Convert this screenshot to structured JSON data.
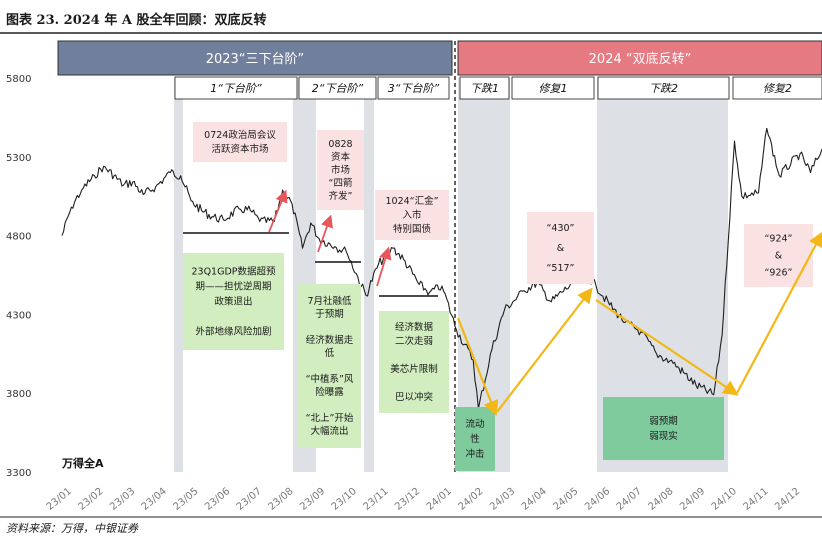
{
  "title": "图表 23. 2024 年 A 股全年回顾：双底反转",
  "source": "资料来源：万得，中银证券",
  "chart_data": {
    "type": "line",
    "series_label": "万得全A",
    "ylim": [
      3300,
      5800
    ],
    "yticks": [
      "3300",
      "3800",
      "4300",
      "4800",
      "5300",
      "5800"
    ],
    "xticks": [
      "23/01",
      "23/02",
      "23/03",
      "23/04",
      "23/05",
      "23/06",
      "23/07",
      "23/08",
      "23/09",
      "23/10",
      "23/11",
      "23/12",
      "24/01",
      "24/02",
      "24/03",
      "24/04",
      "24/05",
      "24/06",
      "24/07",
      "24/08",
      "24/09",
      "24/10",
      "24/11",
      "24/12"
    ],
    "keypoints": [
      [
        "2023-01-01",
        4800
      ],
      [
        "2023-01-10",
        4980
      ],
      [
        "2023-01-20",
        5090
      ],
      [
        "2023-02-01",
        5180
      ],
      [
        "2023-02-10",
        5240
      ],
      [
        "2023-02-20",
        5180
      ],
      [
        "2023-03-01",
        5120
      ],
      [
        "2023-03-10",
        5140
      ],
      [
        "2023-03-20",
        5060
      ],
      [
        "2023-04-01",
        5110
      ],
      [
        "2023-04-15",
        5200
      ],
      [
        "2023-04-25",
        5180
      ],
      [
        "2023-05-05",
        5020
      ],
      [
        "2023-05-15",
        4960
      ],
      [
        "2023-05-25",
        4920
      ],
      [
        "2023-06-05",
        4900
      ],
      [
        "2023-06-20",
        4970
      ],
      [
        "2023-07-01",
        4960
      ],
      [
        "2023-07-10",
        4890
      ],
      [
        "2023-07-24",
        4890
      ],
      [
        "2023-08-01",
        5090
      ],
      [
        "2023-08-10",
        5000
      ],
      [
        "2023-08-20",
        4720
      ],
      [
        "2023-08-28",
        4880
      ],
      [
        "2023-09-05",
        4780
      ],
      [
        "2023-09-20",
        4730
      ],
      [
        "2023-10-01",
        4700
      ],
      [
        "2023-10-20",
        4420
      ],
      [
        "2023-11-01",
        4620
      ],
      [
        "2023-11-15",
        4720
      ],
      [
        "2023-11-25",
        4650
      ],
      [
        "2023-12-10",
        4490
      ],
      [
        "2023-12-20",
        4440
      ],
      [
        "2024-01-01",
        4480
      ],
      [
        "2024-01-15",
        4200
      ],
      [
        "2024-01-31",
        4010
      ],
      [
        "2024-02-05",
        3700
      ],
      [
        "2024-02-18",
        4080
      ],
      [
        "2024-03-01",
        4330
      ],
      [
        "2024-03-20",
        4450
      ],
      [
        "2024-04-01",
        4500
      ],
      [
        "2024-04-15",
        4380
      ],
      [
        "2024-04-25",
        4440
      ],
      [
        "2024-05-17",
        4560
      ],
      [
        "2024-05-28",
        4480
      ],
      [
        "2024-06-10",
        4360
      ],
      [
        "2024-06-25",
        4250
      ],
      [
        "2024-07-10",
        4190
      ],
      [
        "2024-07-25",
        4050
      ],
      [
        "2024-08-10",
        3990
      ],
      [
        "2024-08-20",
        3930
      ],
      [
        "2024-09-01",
        3850
      ],
      [
        "2024-09-18",
        3790
      ],
      [
        "2024-09-26",
        4170
      ],
      [
        "2024-10-08",
        5400
      ],
      [
        "2024-10-15",
        5050
      ],
      [
        "2024-10-31",
        5070
      ],
      [
        "2024-11-08",
        5480
      ],
      [
        "2024-11-20",
        5180
      ],
      [
        "2024-12-10",
        5320
      ],
      [
        "2024-12-20",
        5200
      ],
      [
        "2024-12-31",
        5350
      ]
    ],
    "banners": [
      {
        "label": "2023“三下台阶”",
        "color": "#6f7f9c"
      },
      {
        "label": "2024 “双底反转”",
        "color": "#e67a82"
      }
    ],
    "segments": [
      {
        "label": "1“下台阶”"
      },
      {
        "label": "2“下台阶”"
      },
      {
        "label": "3“下台阶”"
      },
      {
        "label": "下跌1"
      },
      {
        "label": "修复1"
      },
      {
        "label": "下跌2"
      },
      {
        "label": "修复2"
      }
    ],
    "pink_annotations": [
      {
        "lines": [
          "0724政治局会议",
          "活跃资本市场"
        ]
      },
      {
        "lines": [
          "0828",
          "资本",
          "市场",
          "“四箭",
          "齐发”"
        ]
      },
      {
        "lines": [
          "1024“汇金”",
          "入市",
          "特别国债"
        ]
      },
      {
        "lines": [
          "“430”",
          "&",
          "“517”"
        ]
      },
      {
        "lines": [
          "“924”",
          "&",
          "“926”"
        ]
      }
    ],
    "green_annotations": [
      {
        "lines": [
          "23Q1GDP数据超预",
          "期——担忧逆周期",
          "政策退出",
          "",
          "外部地缘风险加剧"
        ]
      },
      {
        "lines": [
          "7月社融低",
          "于预期",
          "",
          "经济数据走",
          "低",
          "",
          "“中植系”风",
          "险曝露",
          "",
          "“北上”开始",
          "大幅流出"
        ]
      },
      {
        "lines": [
          "经济数据",
          "二次走弱",
          "",
          "美芯片限制",
          "",
          "巴以冲突"
        ]
      },
      {
        "lines": [
          "流动",
          "性",
          "冲击"
        ]
      },
      {
        "lines": [
          "弱预期",
          "弱现实"
        ]
      }
    ],
    "colors": {
      "line": "#1f1f1f",
      "shade": "#dde1e6",
      "pink": "#fbe2e2",
      "green_light": "#d2edbf",
      "green_dark": "#7fcb9d",
      "arrow_red": "#e8565c",
      "arrow_yellow": "#f3b716"
    }
  }
}
